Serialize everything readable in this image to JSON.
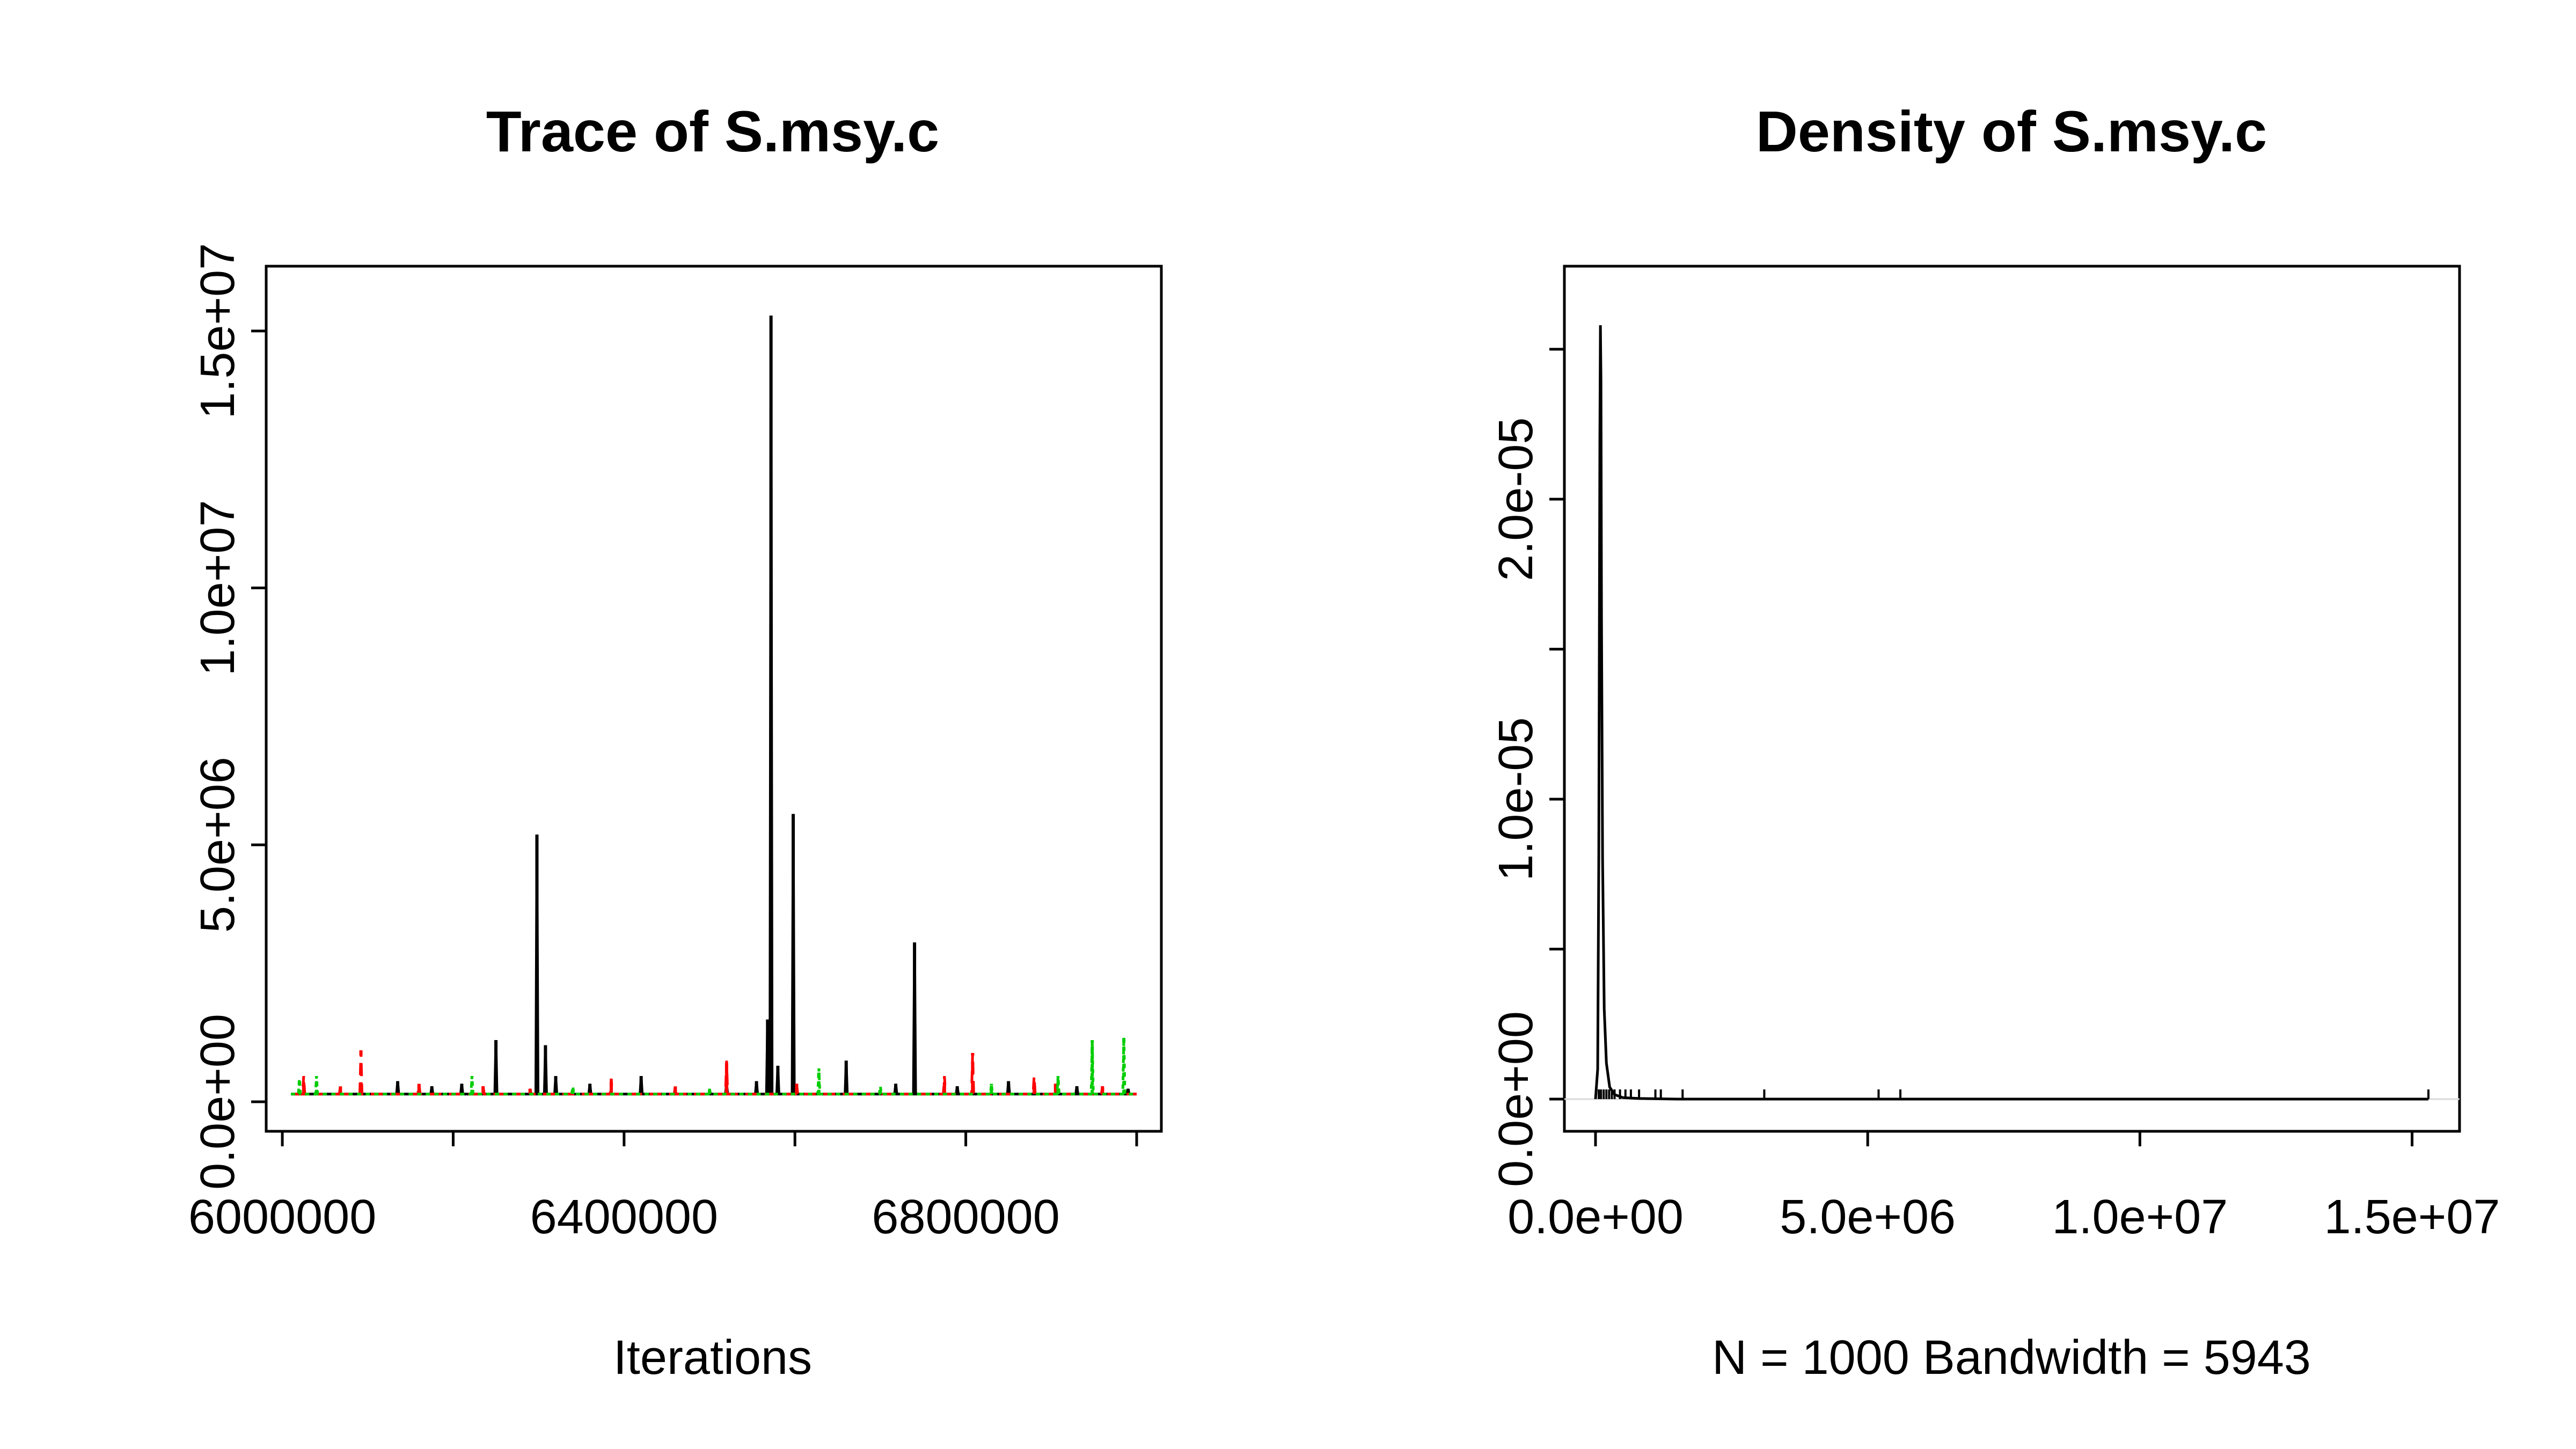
{
  "chart_data": [
    {
      "type": "line",
      "title": "Trace of S.msy.c",
      "xlabel": "Iterations",
      "ylabel": "",
      "x_range": [
        6010000,
        7000000
      ],
      "ylim": [
        0,
        15300000
      ],
      "x_ticks": [
        6000000,
        6200000,
        6400000,
        6600000,
        6800000,
        7000000
      ],
      "x_tick_labels": [
        "6000000",
        "",
        "6400000",
        "",
        "6800000",
        ""
      ],
      "y_ticks": [
        0,
        5000000,
        10000000,
        15000000
      ],
      "y_tick_labels": [
        "0.0e+00",
        "5.0e+06",
        "1.0e+07",
        "1.5e+07"
      ],
      "baseline": 150000,
      "series": [
        {
          "color": "#000000",
          "line_style": "solid",
          "spikes": [
            {
              "x": 6135000,
              "y": 400000
            },
            {
              "x": 6175000,
              "y": 300000
            },
            {
              "x": 6210000,
              "y": 350000
            },
            {
              "x": 6250000,
              "y": 1200000
            },
            {
              "x": 6298000,
              "y": 5200000
            },
            {
              "x": 6308000,
              "y": 1100000
            },
            {
              "x": 6320000,
              "y": 500000
            },
            {
              "x": 6360000,
              "y": 350000
            },
            {
              "x": 6420000,
              "y": 500000
            },
            {
              "x": 6520000,
              "y": 350000
            },
            {
              "x": 6555000,
              "y": 400000
            },
            {
              "x": 6568000,
              "y": 1600000
            },
            {
              "x": 6572000,
              "y": 15300000
            },
            {
              "x": 6580000,
              "y": 700000
            },
            {
              "x": 6598000,
              "y": 5600000
            },
            {
              "x": 6660000,
              "y": 800000
            },
            {
              "x": 6718000,
              "y": 350000
            },
            {
              "x": 6740000,
              "y": 3100000
            },
            {
              "x": 6790000,
              "y": 300000
            },
            {
              "x": 6850000,
              "y": 400000
            },
            {
              "x": 6930000,
              "y": 300000
            },
            {
              "x": 6990000,
              "y": 250000
            }
          ]
        },
        {
          "color": "#ff0000",
          "line_style": "dashed",
          "spikes": [
            {
              "x": 6025000,
              "y": 500000
            },
            {
              "x": 6068000,
              "y": 300000
            },
            {
              "x": 6092000,
              "y": 1000000
            },
            {
              "x": 6160000,
              "y": 350000
            },
            {
              "x": 6235000,
              "y": 300000
            },
            {
              "x": 6290000,
              "y": 250000
            },
            {
              "x": 6385000,
              "y": 450000
            },
            {
              "x": 6460000,
              "y": 300000
            },
            {
              "x": 6520000,
              "y": 800000
            },
            {
              "x": 6602000,
              "y": 350000
            },
            {
              "x": 6775000,
              "y": 500000
            },
            {
              "x": 6808000,
              "y": 950000
            },
            {
              "x": 6880000,
              "y": 500000
            },
            {
              "x": 6905000,
              "y": 350000
            },
            {
              "x": 6960000,
              "y": 300000
            }
          ]
        },
        {
          "color": "#00cd00",
          "line_style": "dotted",
          "spikes": [
            {
              "x": 6020000,
              "y": 450000
            },
            {
              "x": 6040000,
              "y": 500000
            },
            {
              "x": 6222000,
              "y": 500000
            },
            {
              "x": 6340000,
              "y": 300000
            },
            {
              "x": 6500000,
              "y": 250000
            },
            {
              "x": 6628000,
              "y": 650000
            },
            {
              "x": 6700000,
              "y": 300000
            },
            {
              "x": 6830000,
              "y": 350000
            },
            {
              "x": 6908000,
              "y": 500000
            },
            {
              "x": 6948000,
              "y": 1200000
            },
            {
              "x": 6985000,
              "y": 1250000
            }
          ]
        }
      ]
    },
    {
      "type": "line",
      "title": "Density of S.msy.c",
      "xlabel": "N = 1000   Bandwidth = 5943",
      "ylabel": "",
      "x_range": [
        0,
        15300000
      ],
      "ylim": [
        0,
        2.58e-05
      ],
      "x_ticks": [
        0,
        5000000,
        10000000,
        15000000
      ],
      "x_tick_labels": [
        "0.0e+00",
        "5.0e+06",
        "1.0e+07",
        "1.5e+07"
      ],
      "y_ticks": [
        0,
        5e-06,
        1e-05,
        1.5e-05,
        2e-05,
        2.5e-05
      ],
      "y_tick_labels": [
        "0.0e+00",
        "",
        "1.0e-05",
        "",
        "2.0e-05",
        ""
      ],
      "series": [
        {
          "color": "#000000",
          "line_style": "solid",
          "x": [
            0,
            40000,
            60000,
            80000,
            90000,
            100000,
            110000,
            130000,
            160000,
            200000,
            260000,
            350000,
            500000,
            800000,
            1500000,
            3000000,
            8000000,
            15300000
          ],
          "y": [
            0,
            1e-06,
            8e-06,
            2.2e-05,
            2.58e-05,
            2.4e-05,
            1.6e-05,
            8e-06,
            3e-06,
            1.2e-06,
            4e-07,
            1.5e-07,
            5e-08,
            2e-08,
            0,
            0,
            0,
            0
          ]
        }
      ],
      "rug_x": [
        60000,
        100000,
        150000,
        200000,
        250000,
        300000,
        350000,
        450000,
        550000,
        650000,
        800000,
        1100000,
        1200000,
        1600000,
        3100000,
        5200000,
        5600000,
        15300000
      ]
    }
  ]
}
